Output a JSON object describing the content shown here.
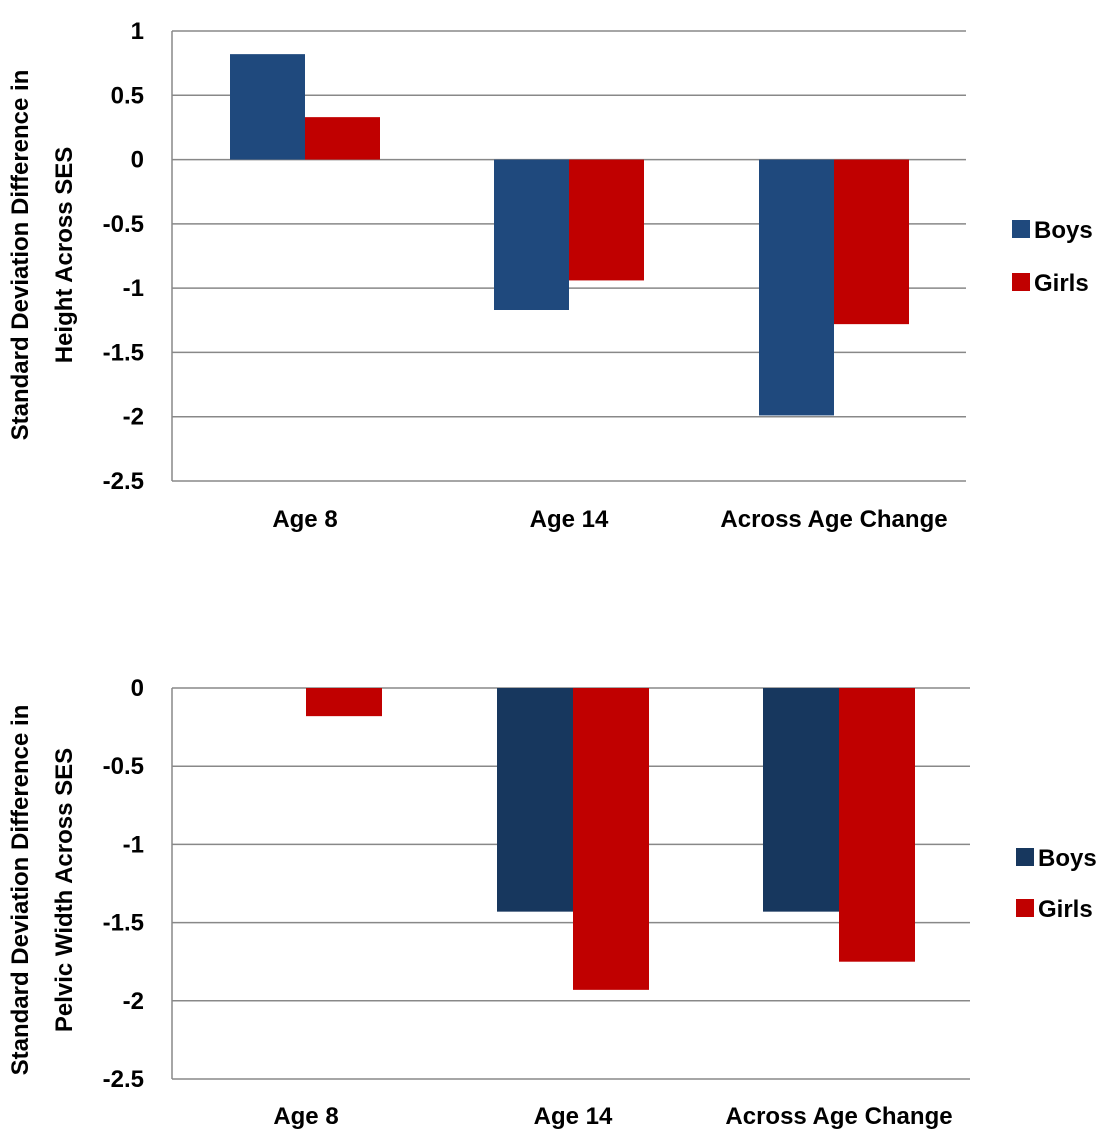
{
  "chart_data": [
    {
      "type": "bar",
      "ylabel_lines": [
        "Standard Deviation Difference in",
        "Height Across SES"
      ],
      "categories": [
        "Age 8",
        "Age 14",
        "Across Age Change"
      ],
      "series": [
        {
          "name": "Boys",
          "color": "#1f497d",
          "values": [
            0.82,
            -1.17,
            -1.99
          ]
        },
        {
          "name": "Girls",
          "color": "#c00000",
          "values": [
            0.33,
            -0.94,
            -1.28
          ]
        }
      ],
      "ylim": [
        -2.5,
        1
      ],
      "yticks": [
        1,
        0.5,
        0,
        -0.5,
        -1,
        -1.5,
        -2,
        -2.5
      ],
      "ytick_labels": [
        "1",
        "0.5",
        "0",
        "-0.5",
        "-1",
        "-1.5",
        "-2",
        "-2.5"
      ],
      "grid": true,
      "legend": "right"
    },
    {
      "type": "bar",
      "ylabel_lines": [
        "Standard Deviation Difference in",
        "Pelvic Width Across SES"
      ],
      "categories": [
        "Age 8",
        "Age 14",
        "Across Age Change"
      ],
      "series": [
        {
          "name": "Boys",
          "color": "#17375e",
          "values": [
            0,
            -1.43,
            -1.43
          ]
        },
        {
          "name": "Girls",
          "color": "#c00000",
          "values": [
            -0.18,
            -1.93,
            -1.75
          ]
        }
      ],
      "ylim": [
        -2.5,
        0
      ],
      "yticks": [
        0,
        -0.5,
        -1,
        -1.5,
        -2,
        -2.5
      ],
      "ytick_labels": [
        "0",
        "-0.5",
        "-1",
        "-1.5",
        "-2",
        "-2.5"
      ],
      "grid": true,
      "legend": "right"
    }
  ]
}
